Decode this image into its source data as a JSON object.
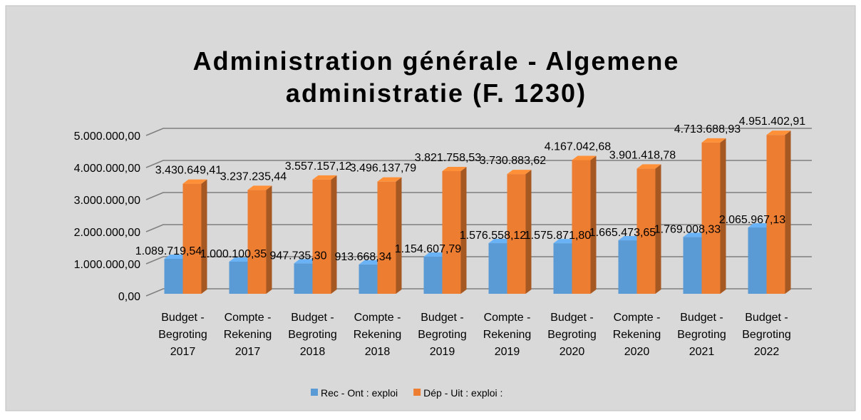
{
  "chart_data": {
    "type": "bar3d",
    "title": [
      "Administration générale - Algemene",
      "administratie (F. 1230)"
    ],
    "categories": [
      [
        "Budget -",
        "Begroting",
        "2017"
      ],
      [
        "Compte -",
        "Rekening",
        "2017"
      ],
      [
        "Budget -",
        "Begroting",
        "2018"
      ],
      [
        "Compte -",
        "Rekening",
        "2018"
      ],
      [
        "Budget -",
        "Begroting",
        "2019"
      ],
      [
        "Compte -",
        "Rekening",
        "2019"
      ],
      [
        "Budget -",
        "Begroting",
        "2020"
      ],
      [
        "Compte -",
        "Rekening",
        "2020"
      ],
      [
        "Budget -",
        "Begroting",
        "2021"
      ],
      [
        "Budget -",
        "Begroting",
        "2022"
      ]
    ],
    "series": [
      {
        "name": "Rec - Ont : exploi",
        "color": "#5b9bd5",
        "values": [
          1089719.54,
          1000100.35,
          947735.3,
          913668.34,
          1154607.79,
          1576558.12,
          1575871.8,
          1665473.65,
          1769008.33,
          2065967.13
        ],
        "value_labels": [
          "1.089.719,54",
          "1.000.100,35",
          "947.735,30",
          "913.668,34",
          "1.154.607,79",
          "1.576.558,12",
          "1.575.871,80",
          "1.665.473,65",
          "1.769.008,33",
          "2.065.967,13"
        ]
      },
      {
        "name": "Dép - Uit : exploi :",
        "color": "#ed7d31",
        "values": [
          3430649.41,
          3237235.44,
          3557157.12,
          3496137.79,
          3821758.53,
          3730883.62,
          4167042.68,
          3901418.78,
          4713688.93,
          4951402.91
        ],
        "value_labels": [
          "3.430.649,41",
          "3.237.235,44",
          "3.557.157,12",
          "3.496.137,79",
          "3.821.758,53",
          "3.730.883,62",
          "4.167.042,68",
          "3.901.418,78",
          "4.713.688,93",
          "4.951.402,91"
        ]
      }
    ],
    "ylim": [
      0,
      5000000
    ],
    "yticks": [
      {
        "value": 0,
        "label": "0,00"
      },
      {
        "value": 1000000,
        "label": "1.000.000,00"
      },
      {
        "value": 2000000,
        "label": "2.000.000,00"
      },
      {
        "value": 3000000,
        "label": "3.000.000,00"
      },
      {
        "value": 4000000,
        "label": "4.000.000,00"
      },
      {
        "value": 5000000,
        "label": "5.000.000,00"
      }
    ],
    "grid": true,
    "legend": "bottom"
  }
}
